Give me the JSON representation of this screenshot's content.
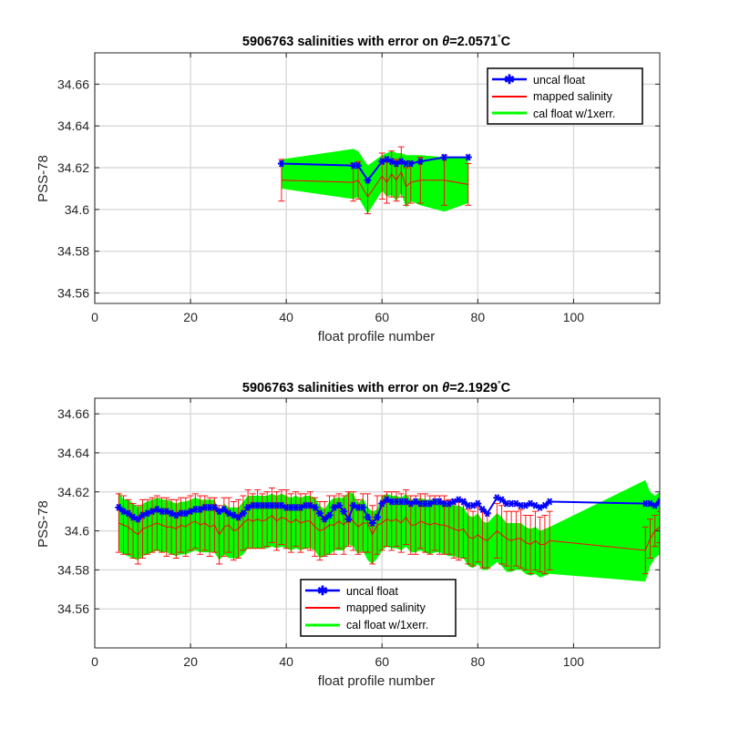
{
  "chart_data": [
    {
      "type": "line",
      "title_prefix": "5906763 salinities with error on ",
      "title_theta": "θ",
      "title_suffix": "=2.0571",
      "title_unit": "C",
      "xlabel": "float profile number",
      "ylabel": "PSS-78",
      "xlim": [
        0,
        118
      ],
      "ylim": [
        34.555,
        34.675
      ],
      "xticks": [
        0,
        20,
        40,
        60,
        80,
        100
      ],
      "yticks": [
        34.56,
        34.58,
        34.6,
        34.62,
        34.64,
        34.66
      ],
      "ytick_labels": [
        "34.56",
        "34.58",
        "34.6",
        "34.62",
        "34.64",
        "34.66"
      ],
      "grid": true,
      "legend_position": "top-right",
      "legend": [
        "uncal float",
        "mapped salinity",
        "cal float w/1xerr."
      ],
      "colors": {
        "uncal": "#0000ff",
        "mapped": "#ff0000",
        "band": "#00ff00"
      },
      "x": [
        39,
        54,
        55,
        57,
        60,
        61,
        62,
        63,
        64,
        65,
        66,
        68,
        73,
        78
      ],
      "uncal": [
        34.622,
        34.621,
        34.621,
        34.614,
        34.623,
        34.624,
        34.623,
        34.622,
        34.623,
        34.622,
        34.622,
        34.623,
        34.625,
        34.625
      ],
      "mapped": [
        34.614,
        34.613,
        34.614,
        34.606,
        34.616,
        34.613,
        34.617,
        34.614,
        34.618,
        34.611,
        34.613,
        34.614,
        34.614,
        34.612
      ],
      "err": [
        0.01,
        0.009,
        0.009,
        0.008,
        0.011,
        0.01,
        0.011,
        0.01,
        0.012,
        0.009,
        0.01,
        0.011,
        0.012,
        0.01
      ],
      "band_upper": [
        34.624,
        34.629,
        34.628,
        34.621,
        34.626,
        34.627,
        34.628,
        34.627,
        34.627,
        34.626,
        34.626,
        34.626,
        34.625,
        34.625
      ],
      "band_lower": [
        34.61,
        34.605,
        34.606,
        34.598,
        34.609,
        34.606,
        34.607,
        34.604,
        34.608,
        34.601,
        34.604,
        34.602,
        34.599,
        34.603
      ]
    },
    {
      "type": "line",
      "title_prefix": "5906763 salinities with error on ",
      "title_theta": "θ",
      "title_suffix": "=2.1929",
      "title_unit": "C",
      "xlabel": "float profile number",
      "ylabel": "PSS-78",
      "xlim": [
        0,
        118
      ],
      "ylim": [
        34.54,
        34.668
      ],
      "xticks": [
        0,
        20,
        40,
        60,
        80,
        100
      ],
      "yticks": [
        34.56,
        34.58,
        34.6,
        34.62,
        34.64,
        34.66
      ],
      "ytick_labels": [
        "34.56",
        "34.58",
        "34.6",
        "34.62",
        "34.64",
        "34.66"
      ],
      "grid": true,
      "legend_position": "bottom-center",
      "legend": [
        "uncal float",
        "mapped salinity",
        "cal float w/1xerr."
      ],
      "colors": {
        "uncal": "#0000ff",
        "mapped": "#ff0000",
        "band": "#00ff00"
      },
      "x": [
        5,
        6,
        7,
        8,
        9,
        10,
        11,
        12,
        13,
        14,
        15,
        16,
        17,
        18,
        19,
        20,
        21,
        22,
        23,
        24,
        25,
        26,
        27,
        28,
        29,
        30,
        31,
        32,
        33,
        34,
        35,
        36,
        37,
        38,
        39,
        40,
        41,
        42,
        43,
        44,
        45,
        46,
        47,
        48,
        49,
        50,
        51,
        52,
        53,
        54,
        55,
        56,
        57,
        58,
        59,
        60,
        61,
        62,
        63,
        64,
        65,
        66,
        67,
        68,
        69,
        70,
        71,
        72,
        73,
        74,
        75,
        76,
        77,
        78,
        79,
        80,
        81,
        82,
        84,
        85,
        86,
        87,
        88,
        89,
        90,
        91,
        92,
        93,
        94,
        95,
        115,
        116,
        117,
        118
      ],
      "uncal": [
        34.612,
        34.61,
        34.609,
        34.607,
        34.606,
        34.608,
        34.609,
        34.61,
        34.611,
        34.61,
        34.61,
        34.609,
        34.608,
        34.609,
        34.609,
        34.61,
        34.611,
        34.611,
        34.612,
        34.612,
        34.612,
        34.61,
        34.611,
        34.609,
        34.608,
        34.607,
        34.609,
        34.612,
        34.613,
        34.613,
        34.613,
        34.613,
        34.613,
        34.613,
        34.613,
        34.612,
        34.612,
        34.612,
        34.612,
        34.613,
        34.613,
        34.612,
        34.609,
        34.606,
        34.608,
        34.612,
        34.613,
        34.61,
        34.606,
        34.613,
        34.612,
        34.612,
        34.607,
        34.604,
        34.607,
        34.614,
        34.616,
        34.615,
        34.615,
        34.615,
        34.615,
        34.614,
        34.615,
        34.614,
        34.614,
        34.614,
        34.615,
        34.615,
        34.614,
        34.614,
        34.615,
        34.616,
        34.615,
        34.613,
        34.613,
        34.614,
        34.611,
        34.609,
        34.617,
        34.616,
        34.614,
        34.614,
        34.614,
        34.613,
        34.613,
        34.614,
        34.613,
        34.612,
        34.613,
        34.615,
        34.614,
        34.614,
        34.613,
        34.615
      ],
      "mapped": [
        34.604,
        34.603,
        34.602,
        34.6,
        34.598,
        34.601,
        34.602,
        34.603,
        34.604,
        34.603,
        34.602,
        34.602,
        34.601,
        34.603,
        34.602,
        34.604,
        34.605,
        34.603,
        34.604,
        34.602,
        34.603,
        34.598,
        34.602,
        34.603,
        34.6,
        34.601,
        34.604,
        34.606,
        34.605,
        34.606,
        34.605,
        34.606,
        34.608,
        34.605,
        34.607,
        34.606,
        34.604,
        34.606,
        34.604,
        34.605,
        34.605,
        34.602,
        34.6,
        34.601,
        34.603,
        34.603,
        34.605,
        34.603,
        34.606,
        34.605,
        34.602,
        34.604,
        34.604,
        34.598,
        34.603,
        34.604,
        34.606,
        34.605,
        34.606,
        34.604,
        34.607,
        34.603,
        34.603,
        34.605,
        34.604,
        34.603,
        34.604,
        34.603,
        34.603,
        34.602,
        34.601,
        34.6,
        34.601,
        34.597,
        34.596,
        34.598,
        34.596,
        34.595,
        34.6,
        34.598,
        34.596,
        34.595,
        34.596,
        34.596,
        34.594,
        34.593,
        34.595,
        34.593,
        34.593,
        34.595,
        34.59,
        34.596,
        34.6,
        34.602
      ],
      "err": [
        0.015,
        0.015,
        0.014,
        0.014,
        0.015,
        0.015,
        0.014,
        0.014,
        0.014,
        0.014,
        0.015,
        0.014,
        0.015,
        0.014,
        0.015,
        0.014,
        0.014,
        0.015,
        0.014,
        0.015,
        0.014,
        0.015,
        0.015,
        0.014,
        0.015,
        0.015,
        0.014,
        0.015,
        0.014,
        0.015,
        0.014,
        0.014,
        0.014,
        0.015,
        0.014,
        0.015,
        0.015,
        0.014,
        0.015,
        0.014,
        0.015,
        0.015,
        0.015,
        0.014,
        0.015,
        0.015,
        0.014,
        0.015,
        0.014,
        0.015,
        0.014,
        0.015,
        0.015,
        0.015,
        0.015,
        0.014,
        0.014,
        0.015,
        0.014,
        0.015,
        0.014,
        0.015,
        0.015,
        0.014,
        0.015,
        0.015,
        0.014,
        0.015,
        0.015,
        0.014,
        0.015,
        0.015,
        0.015,
        0.014,
        0.014,
        0.014,
        0.015,
        0.014,
        0.014,
        0.015,
        0.014,
        0.015,
        0.014,
        0.015,
        0.014,
        0.015,
        0.015,
        0.014,
        0.015,
        0.015,
        0.012,
        0.01,
        0.008,
        0.008
      ],
      "band_upper": [
        34.62,
        34.616,
        34.616,
        34.614,
        34.612,
        34.614,
        34.615,
        34.616,
        34.617,
        34.616,
        34.616,
        34.615,
        34.614,
        34.615,
        34.615,
        34.616,
        34.617,
        34.616,
        34.616,
        34.616,
        34.616,
        34.61,
        34.614,
        34.612,
        34.612,
        34.612,
        34.615,
        34.618,
        34.618,
        34.618,
        34.618,
        34.618,
        34.619,
        34.618,
        34.619,
        34.618,
        34.617,
        34.618,
        34.617,
        34.618,
        34.618,
        34.617,
        34.613,
        34.611,
        34.615,
        34.617,
        34.617,
        34.617,
        34.62,
        34.619,
        34.614,
        34.617,
        34.612,
        34.61,
        34.611,
        34.618,
        34.619,
        34.618,
        34.618,
        34.617,
        34.619,
        34.616,
        34.616,
        34.617,
        34.616,
        34.616,
        34.616,
        34.616,
        34.615,
        34.614,
        34.613,
        34.613,
        34.612,
        34.608,
        34.607,
        34.609,
        34.605,
        34.604,
        34.609,
        34.607,
        34.604,
        34.604,
        34.604,
        34.604,
        34.602,
        34.601,
        34.602,
        34.6,
        34.601,
        34.602,
        34.626,
        34.62,
        34.618,
        34.62
      ],
      "band_lower": [
        34.59,
        34.588,
        34.587,
        34.586,
        34.585,
        34.587,
        34.588,
        34.589,
        34.59,
        34.589,
        34.589,
        34.588,
        34.587,
        34.588,
        34.588,
        34.589,
        34.59,
        34.589,
        34.589,
        34.589,
        34.589,
        34.585,
        34.588,
        34.586,
        34.586,
        34.586,
        34.588,
        34.591,
        34.591,
        34.591,
        34.591,
        34.591,
        34.592,
        34.591,
        34.592,
        34.591,
        34.59,
        34.591,
        34.59,
        34.591,
        34.591,
        34.59,
        34.586,
        34.587,
        34.588,
        34.59,
        34.59,
        34.59,
        34.593,
        34.592,
        34.588,
        34.59,
        34.585,
        34.583,
        34.586,
        34.59,
        34.592,
        34.591,
        34.591,
        34.59,
        34.592,
        34.589,
        34.589,
        34.59,
        34.589,
        34.588,
        34.589,
        34.589,
        34.588,
        34.587,
        34.587,
        34.586,
        34.586,
        34.582,
        34.581,
        34.583,
        34.58,
        34.58,
        34.584,
        34.582,
        34.579,
        34.579,
        34.58,
        34.58,
        34.578,
        34.577,
        34.578,
        34.576,
        34.577,
        34.578,
        34.574,
        34.582,
        34.586,
        34.588
      ]
    }
  ]
}
